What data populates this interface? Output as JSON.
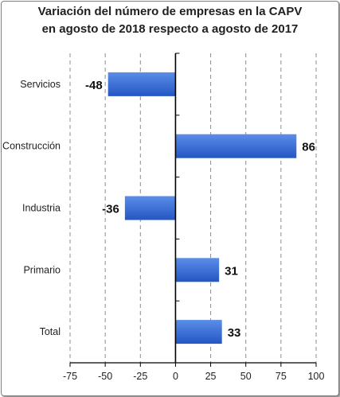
{
  "chart_data": {
    "type": "bar",
    "orientation": "horizontal",
    "title_line1": "Variación del número de empresas en la CAPV",
    "title_line2": "en agosto de 2018 respecto a agosto de 2017",
    "categories": [
      "Servicios",
      "Construcción",
      "Industria",
      "Primario",
      "Total"
    ],
    "values": [
      -48,
      86,
      -36,
      31,
      33
    ],
    "data_labels": [
      "-48",
      "86",
      "-36",
      "31",
      "33"
    ],
    "xlim": [
      -75,
      100
    ],
    "xticks": [
      -75,
      -50,
      -25,
      0,
      25,
      50,
      75,
      100
    ],
    "xtick_labels": [
      "-75",
      "-50",
      "-25",
      "0",
      "25",
      "50",
      "75",
      "100"
    ],
    "grid": "vertical dashed",
    "legend": "none",
    "bar_color_top": "#5b8de8",
    "bar_color_bottom": "#2456c4"
  }
}
